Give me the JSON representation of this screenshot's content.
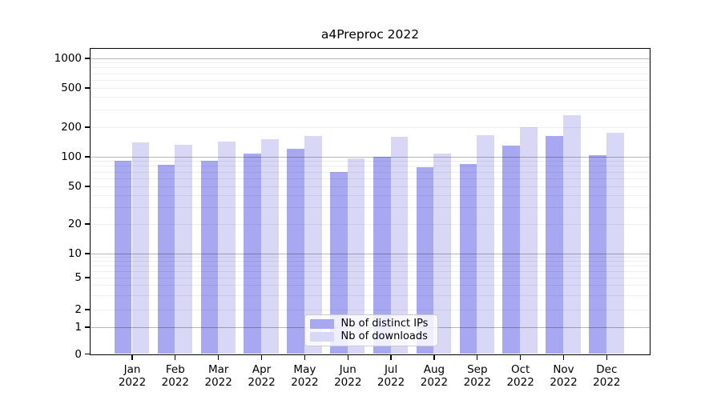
{
  "title": "a4Preproc 2022",
  "legend": {
    "items": [
      {
        "label": "Nb of distinct IPs",
        "color": "#a8a8f2"
      },
      {
        "label": "Nb of downloads",
        "color": "#d8d8f6"
      }
    ]
  },
  "y_axis": {
    "tick_labels": [
      "1000",
      "500",
      "200",
      "100",
      "50",
      "20",
      "10",
      "5",
      "2",
      "1",
      "0"
    ],
    "tick_values": [
      1000,
      500,
      200,
      100,
      50,
      20,
      10,
      5,
      2,
      1,
      0
    ]
  },
  "x_axis": {
    "months": [
      "Jan",
      "Feb",
      "Mar",
      "Apr",
      "May",
      "Jun",
      "Jul",
      "Aug",
      "Sep",
      "Oct",
      "Nov",
      "Dec"
    ],
    "year": "2022"
  },
  "chart_data": {
    "type": "bar",
    "title": "a4Preproc 2022",
    "categories": [
      "Jan 2022",
      "Feb 2022",
      "Mar 2022",
      "Apr 2022",
      "May 2022",
      "Jun 2022",
      "Jul 2022",
      "Aug 2022",
      "Sep 2022",
      "Oct 2022",
      "Nov 2022",
      "Dec 2022"
    ],
    "series": [
      {
        "name": "Nb of distinct IPs",
        "color": "#a8a8f2",
        "values": [
          91,
          82,
          90,
          107,
          119,
          70,
          100,
          78,
          83,
          128,
          162,
          103
        ]
      },
      {
        "name": "Nb of downloads",
        "color": "#d8d8f6",
        "values": [
          138,
          130,
          141,
          150,
          160,
          96,
          158,
          106,
          163,
          199,
          260,
          175
        ]
      }
    ],
    "xlabel": "",
    "ylabel": "",
    "yscale": "log above 1, linear segment 0-1 (symlog-like)",
    "ylim": [
      0,
      1250
    ],
    "yticks": [
      0,
      1,
      2,
      5,
      10,
      20,
      50,
      100,
      200,
      500,
      1000
    ],
    "grid": "horizontal major and minor gridlines, drawn over bars",
    "legend_position": "lower center inside plot"
  }
}
